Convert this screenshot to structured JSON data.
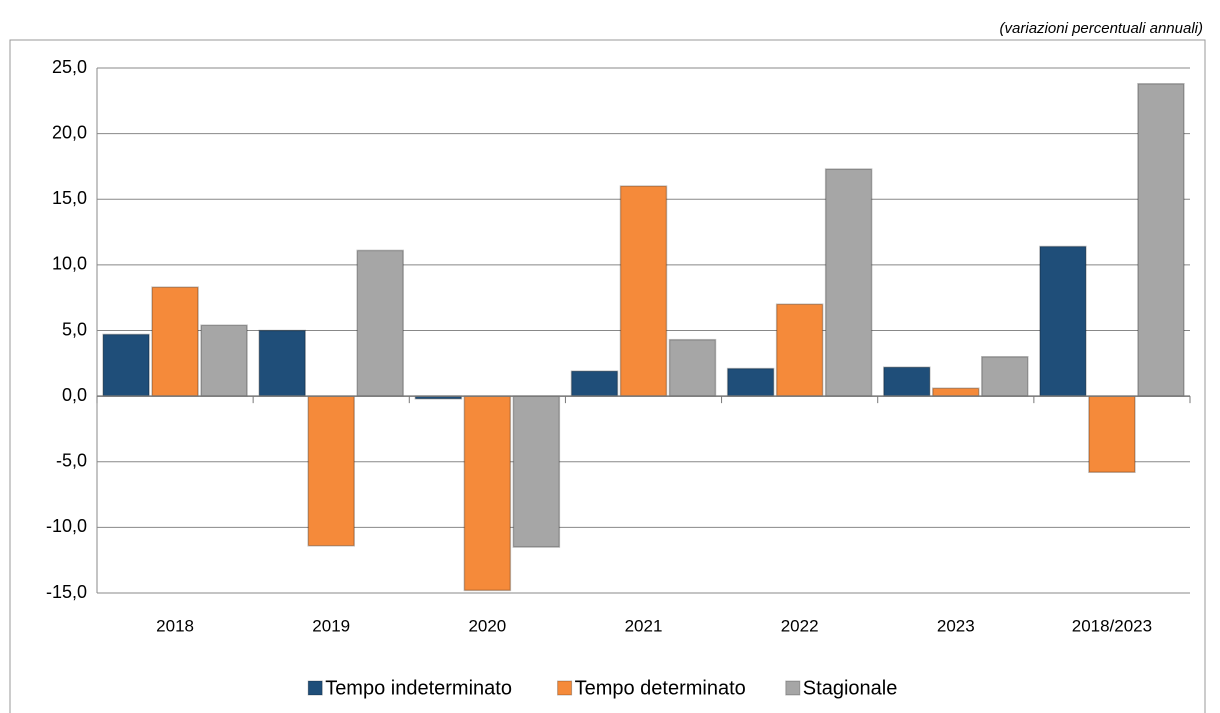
{
  "chart_data": {
    "type": "bar",
    "subtitle": "(variazioni percentuali annuali)",
    "categories": [
      "2018",
      "2019",
      "2020",
      "2021",
      "2022",
      "2023",
      "2018/2023"
    ],
    "series": [
      {
        "name": "Tempo indeterminato",
        "color": "#1f4e79",
        "values": [
          4.7,
          5.0,
          -0.2,
          1.9,
          2.1,
          2.2,
          11.4
        ]
      },
      {
        "name": "Tempo determinato",
        "color": "#f58a3a",
        "values": [
          8.3,
          -11.4,
          -14.8,
          16.0,
          7.0,
          0.6,
          -5.8
        ]
      },
      {
        "name": "Stagionale",
        "color": "#a6a6a6",
        "values": [
          5.4,
          11.1,
          -11.5,
          4.3,
          17.3,
          3.0,
          23.8
        ]
      }
    ],
    "ylim": [
      -15,
      25
    ],
    "yticks": [
      {
        "value": -15,
        "label": "-15,0"
      },
      {
        "value": -10,
        "label": "-10,0"
      },
      {
        "value": -5,
        "label": "-5,0"
      },
      {
        "value": 0,
        "label": "0,0"
      },
      {
        "value": 5,
        "label": "5,0"
      },
      {
        "value": 10,
        "label": "10,0"
      },
      {
        "value": 15,
        "label": "15,0"
      },
      {
        "value": 20,
        "label": "20,0"
      },
      {
        "value": 25,
        "label": "25,0"
      }
    ],
    "grid": true,
    "legend": "bottom"
  }
}
